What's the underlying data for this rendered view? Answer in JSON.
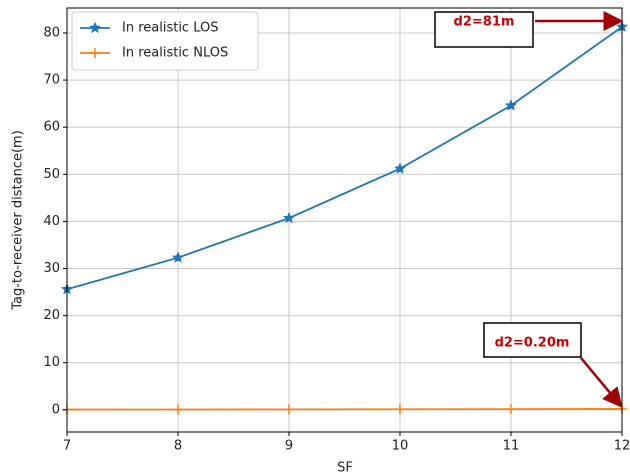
{
  "chart_data": {
    "type": "line",
    "xlabel": "SF",
    "ylabel": "Tag-to-receiver distance(m)",
    "x": [
      7,
      8,
      9,
      10,
      11,
      12
    ],
    "series": [
      {
        "name": "In realistic LOS",
        "color": "#1f77b4",
        "marker": "star",
        "values": [
          25.6,
          32.3,
          40.7,
          51.2,
          64.6,
          81.3
        ]
      },
      {
        "name": "In realistic NLOS",
        "color": "#ff7f0e",
        "marker": "plus",
        "values": [
          0.06,
          0.08,
          0.1,
          0.13,
          0.16,
          0.2
        ]
      }
    ],
    "xlim": [
      7,
      12
    ],
    "ylim": [
      -4.7,
      85.3
    ],
    "xticks": [
      7,
      8,
      9,
      10,
      11,
      12
    ],
    "yticks": [
      0,
      10,
      20,
      30,
      40,
      50,
      60,
      70,
      80
    ],
    "grid": true,
    "legend": "upper left",
    "annotations": [
      {
        "text": "d2=81m"
      },
      {
        "text": "d2=0.20m"
      }
    ]
  }
}
